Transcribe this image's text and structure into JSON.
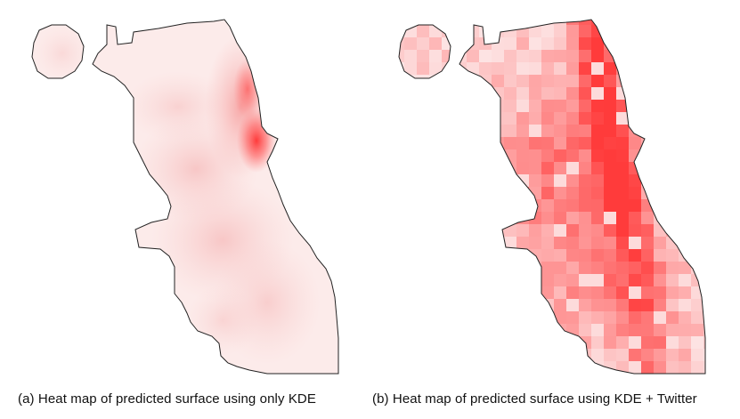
{
  "figure": {
    "panels": [
      {
        "id": "a",
        "caption": "(a) Heat map of predicted surface using only KDE",
        "method": "KDE",
        "rendering": "smooth-gradient"
      },
      {
        "id": "b",
        "caption": "(b) Heat map of predicted surface using KDE + Twitter",
        "method": "KDE + Twitter",
        "rendering": "grid-cells"
      }
    ],
    "colors": {
      "heat_max": "#ff3b3b",
      "heat_min": "#fde3e3",
      "outline": "#222222",
      "background": "#ffffff"
    }
  }
}
